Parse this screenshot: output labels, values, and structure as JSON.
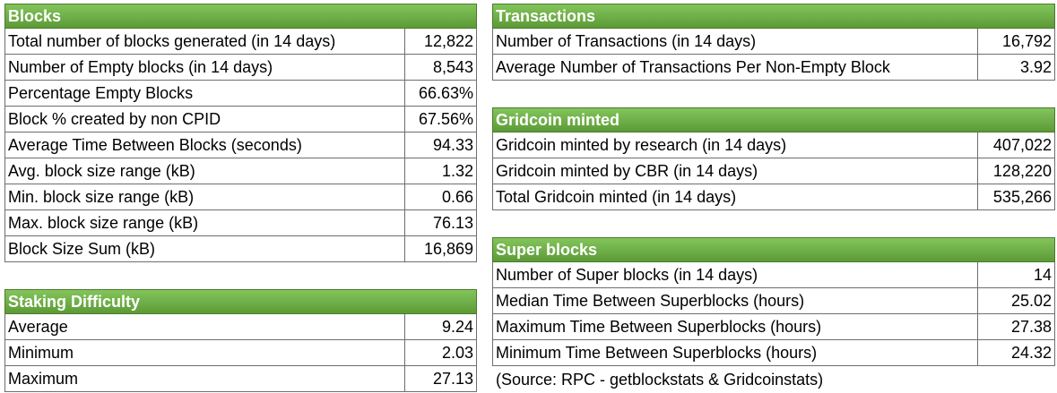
{
  "blocks": {
    "title": "Blocks",
    "rows": [
      {
        "label": "Total number of blocks generated (in 14 days)",
        "value": "12,822"
      },
      {
        "label": "Number of Empty blocks (in 14 days)",
        "value": "8,543"
      },
      {
        "label": "Percentage Empty Blocks",
        "value": "66.63%"
      },
      {
        "label": "Block % created by non CPID",
        "value": "67.56%"
      },
      {
        "label": "Average Time Between Blocks (seconds)",
        "value": "94.33"
      },
      {
        "label": "Avg. block size range (kB)",
        "value": "1.32"
      },
      {
        "label": "Min. block size range (kB)",
        "value": "0.66"
      },
      {
        "label": "Max. block size range (kB)",
        "value": "76.13"
      },
      {
        "label": "Block Size Sum (kB)",
        "value": "16,869"
      }
    ]
  },
  "staking": {
    "title": "Staking Difficulty",
    "rows": [
      {
        "label": "Average",
        "value": "9.24"
      },
      {
        "label": "Minimum",
        "value": "2.03"
      },
      {
        "label": "Maximum",
        "value": "27.13"
      }
    ]
  },
  "transactions": {
    "title": "Transactions",
    "rows": [
      {
        "label": "Number of Transactions (in 14 days)",
        "value": "16,792"
      },
      {
        "label": "Average Number of Transactions Per Non-Empty Block",
        "value": "3.92"
      }
    ]
  },
  "minted": {
    "title": "Gridcoin minted",
    "rows": [
      {
        "label": "Gridcoin minted by research (in 14 days)",
        "value": "407,022"
      },
      {
        "label": "Gridcoin minted by CBR (in 14 days)",
        "value": "128,220"
      },
      {
        "label": "Total Gridcoin minted (in 14 days)",
        "value": "535,266"
      }
    ]
  },
  "superblocks": {
    "title": "Super blocks",
    "rows": [
      {
        "label": "Number of Super blocks (in 14 days)",
        "value": "14"
      },
      {
        "label": "Median Time Between Superblocks (hours)",
        "value": "25.02"
      },
      {
        "label": "Maximum Time Between Superblocks (hours)",
        "value": "27.38"
      },
      {
        "label": "Minimum Time Between Superblocks (hours)",
        "value": "24.32"
      }
    ]
  },
  "source": "(Source: RPC - getblockstats & Gridcoinstats)"
}
